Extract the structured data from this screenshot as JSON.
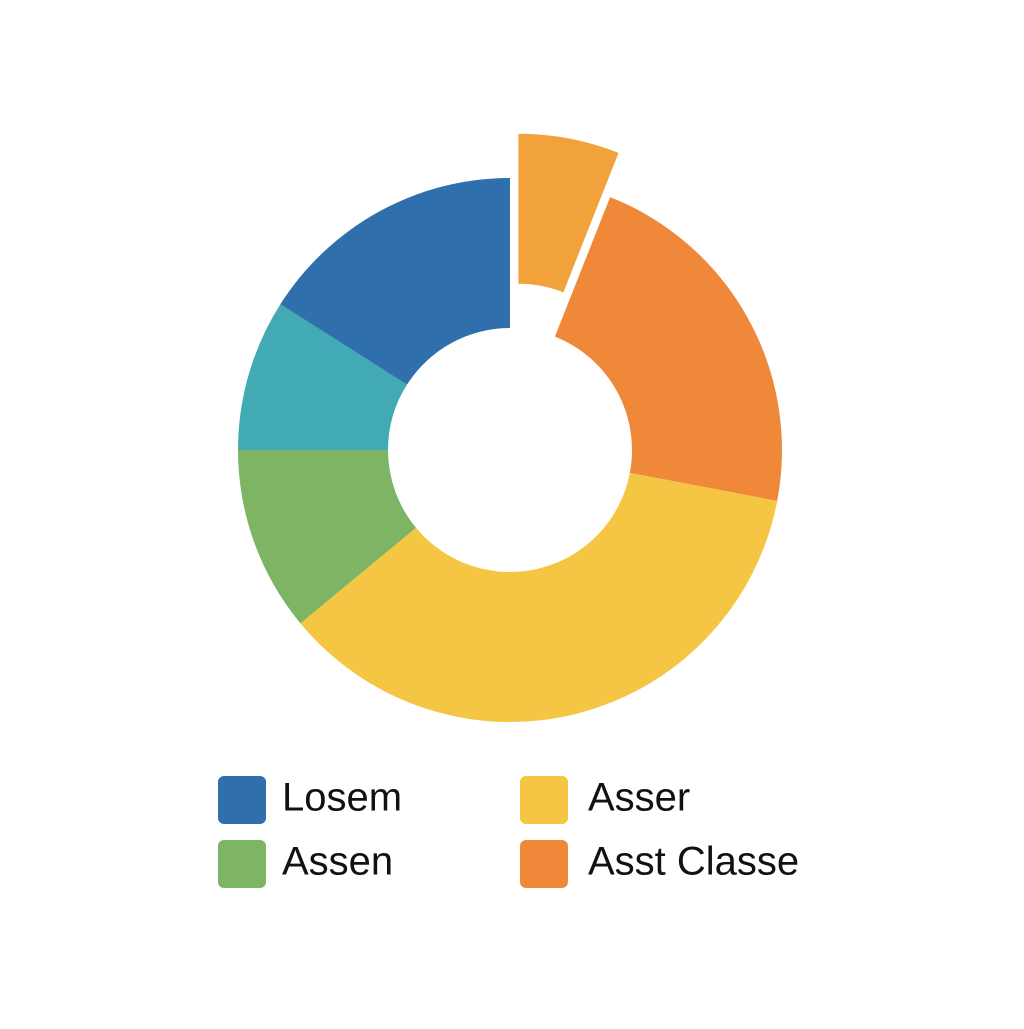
{
  "chart_data": {
    "type": "pie",
    "donut": true,
    "categories": [
      null,
      "Asst Classe",
      "Asser",
      "Assen",
      null,
      "Losem"
    ],
    "values": [
      6,
      22,
      36,
      11,
      9,
      16
    ],
    "colors": [
      "#f2a23b",
      "#f0883a",
      "#f5c544",
      "#7db564",
      "#41aab4",
      "#2f6fab"
    ],
    "explode": [
      true,
      false,
      false,
      false,
      false,
      false
    ]
  }
}
